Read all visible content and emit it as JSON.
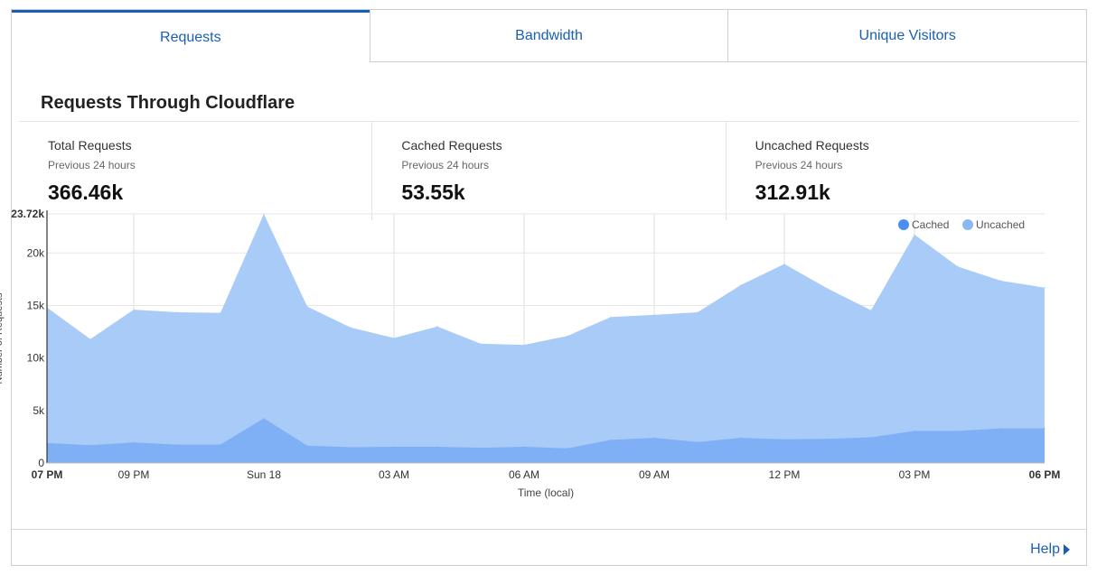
{
  "tabs": [
    {
      "label": "Requests",
      "active": true
    },
    {
      "label": "Bandwidth",
      "active": false
    },
    {
      "label": "Unique Visitors",
      "active": false
    }
  ],
  "section_title": "Requests Through Cloudflare",
  "stats": [
    {
      "label": "Total Requests",
      "sub": "Previous 24 hours",
      "value": "366.46k"
    },
    {
      "label": "Cached Requests",
      "sub": "Previous 24 hours",
      "value": "53.55k"
    },
    {
      "label": "Uncached Requests",
      "sub": "Previous 24 hours",
      "value": "312.91k"
    }
  ],
  "help_label": "Help",
  "colors": {
    "accent": "#1a5fb4",
    "cached": "#7fb0f6",
    "uncached": "#a9cbf8",
    "legend_cached": "#4a8ff0",
    "legend_uncached": "#8ab8f6"
  },
  "chart_data": {
    "type": "area",
    "stacked": true,
    "xlabel": "Time (local)",
    "ylabel": "Number of Requests",
    "ylim": [
      0,
      23720
    ],
    "y_ticks": [
      {
        "value": 0,
        "label": "0"
      },
      {
        "value": 5000,
        "label": "5k"
      },
      {
        "value": 10000,
        "label": "10k"
      },
      {
        "value": 15000,
        "label": "15k"
      },
      {
        "value": 20000,
        "label": "20k"
      },
      {
        "value": 23720,
        "label": "23.72k",
        "bold": true
      }
    ],
    "x_ticks": [
      {
        "index": 0,
        "label": "07 PM",
        "bold": true
      },
      {
        "index": 2,
        "label": "09 PM"
      },
      {
        "index": 5,
        "label": "Sun 18"
      },
      {
        "index": 8,
        "label": "03 AM"
      },
      {
        "index": 11,
        "label": "06 AM"
      },
      {
        "index": 14,
        "label": "09 AM"
      },
      {
        "index": 17,
        "label": "12 PM"
      },
      {
        "index": 20,
        "label": "03 PM"
      },
      {
        "index": 23,
        "label": "06 PM",
        "bold": true
      }
    ],
    "legend": {
      "position": "top-right",
      "entries": [
        "Cached",
        "Uncached"
      ]
    },
    "series": [
      {
        "name": "Cached",
        "values": [
          1900,
          1700,
          1950,
          1750,
          1750,
          4250,
          1650,
          1500,
          1550,
          1550,
          1450,
          1550,
          1400,
          2200,
          2400,
          2000,
          2400,
          2250,
          2300,
          2450,
          3050,
          3050,
          3300,
          3300
        ]
      },
      {
        "name": "Uncached",
        "values": [
          12900,
          10100,
          12650,
          12600,
          12550,
          19470,
          13250,
          11400,
          10350,
          11450,
          9900,
          9700,
          10700,
          11700,
          11700,
          12350,
          14550,
          16700,
          14300,
          12100,
          18700,
          15650,
          14050,
          13400
        ]
      }
    ]
  }
}
